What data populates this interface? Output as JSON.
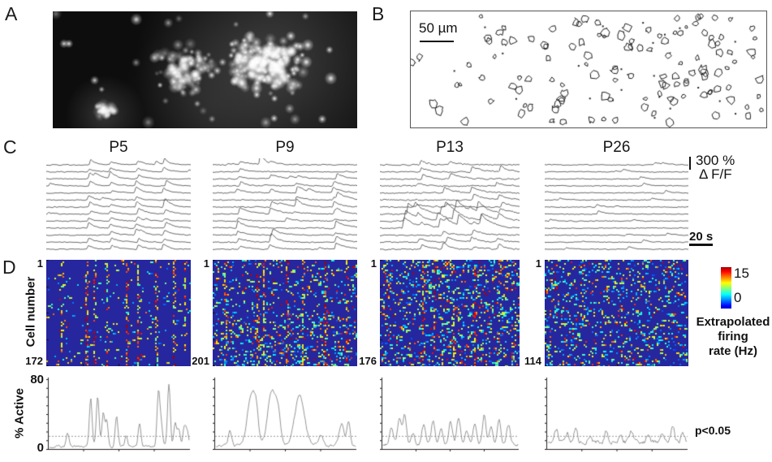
{
  "figure_labels": {
    "a": "A",
    "b": "B",
    "c": "C",
    "d": "D"
  },
  "panel_b": {
    "scale_bar_label": "50 µm"
  },
  "panel_c": {
    "ages": [
      "P5",
      "P9",
      "P13",
      "P26"
    ],
    "amplitude_scale": "300 %",
    "amplitude_unit": "Δ F/F",
    "time_scale_label": "20 s"
  },
  "panel_d": {
    "row_start_label": "1",
    "y_axis_label": "Cell number",
    "cell_counts": [
      "172",
      "201",
      "176",
      "114"
    ],
    "colorbar": {
      "max_label": "15",
      "min_label": "0",
      "caption_lines": [
        "Extrapolated",
        "firing",
        "rate (Hz)"
      ]
    },
    "active_plots": {
      "y_max_label": "80",
      "y_min_label": "0",
      "y_axis_label": "% Active",
      "significance_label": "p<0.05"
    }
  },
  "colors": {
    "heatmap_background": "#26269e",
    "trace_stroke": "#3a3a3a",
    "active_trace_stroke": "#8a8a8a",
    "threshold_line": "#999999"
  },
  "chart_data": [
    {
      "type": "line",
      "title": "% Active cells over time by age",
      "ylabel": "% Active",
      "ylim": [
        0,
        80
      ],
      "threshold": {
        "value": 15,
        "label": "p<0.05"
      },
      "series": [
        {
          "name": "P5",
          "description": "low baseline with clusters of sharp synchronized peaks",
          "approx_peak_values": [
            15,
            54,
            57,
            38,
            34,
            26,
            61,
            72,
            28,
            22
          ]
        },
        {
          "name": "P9",
          "description": "broad synchronized peaks over low baseline",
          "approx_peak_values": [
            18,
            60,
            62,
            30,
            58,
            25,
            28
          ]
        },
        {
          "name": "P13",
          "description": "frequent medium-amplitude fluctuations",
          "approx_peak_values": [
            30,
            35,
            22,
            28,
            26,
            32,
            25,
            35,
            30
          ]
        },
        {
          "name": "P26",
          "description": "continuous fluctuation around significance threshold",
          "approx_peak_values": [
            20,
            24,
            18,
            16,
            25
          ]
        }
      ]
    },
    {
      "type": "heatmap",
      "title": "Extrapolated firing rate rasters",
      "colormap": "jet",
      "value_range_hz": [
        0,
        15
      ],
      "panels": [
        {
          "age": "P5",
          "n_cells": 172,
          "pattern": "sparse with strong synchronized vertical event columns"
        },
        {
          "age": "P9",
          "n_cells": 201,
          "pattern": "dense activity with broad synchronized columns"
        },
        {
          "age": "P13",
          "n_cells": 176,
          "pattern": "scattered activity, weak columnar structure"
        },
        {
          "age": "P26",
          "n_cells": 114,
          "pattern": "desynchronized salt-and-pepper activity"
        }
      ]
    }
  ]
}
